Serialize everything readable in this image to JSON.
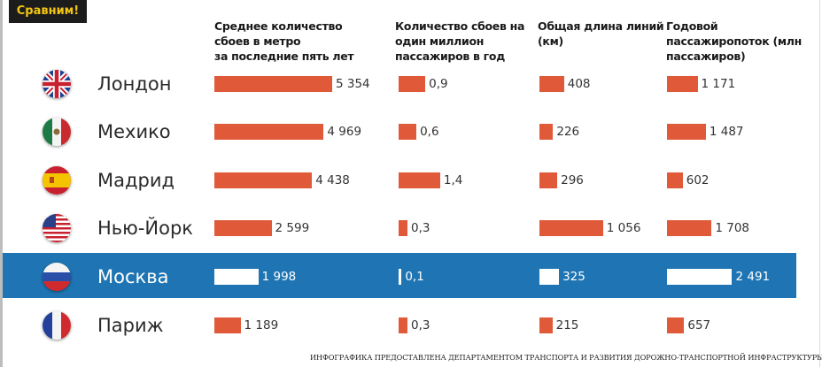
{
  "badge": "Сравним!",
  "colors": {
    "bar": "#e05a3a",
    "highlight_band": "#1f75b3",
    "highlight_bar": "#ffffff",
    "badge_bg": "#1c1c1c",
    "badge_text": "#f2c514"
  },
  "chart_data": {
    "type": "bar",
    "orientation": "horizontal",
    "categories": [
      "Лондон",
      "Мехико",
      "Мадрид",
      "Нью-Йорк",
      "Москва",
      "Париж"
    ],
    "highlighted_category": "Москва",
    "flags": [
      "uk-flag-icon",
      "mexico-flag-icon",
      "spain-flag-icon",
      "usa-flag-icon",
      "russia-flag-icon",
      "france-flag-icon"
    ],
    "series": [
      {
        "name": "Среднее количество\nсбоев в метро\nза последние пять лет",
        "values": [
          5354,
          4969,
          4438,
          2599,
          1998,
          1189
        ],
        "labels": [
          "5 354",
          "4 969",
          "4 438",
          "2 599",
          "1 998",
          "1 189"
        ]
      },
      {
        "name": "Количество сбоев на\nодин миллион\nпассажиров в год",
        "values": [
          0.9,
          0.6,
          1.4,
          0.3,
          0.1,
          0.3
        ],
        "labels": [
          "0,9",
          "0,6",
          "1,4",
          "0,3",
          "0,1",
          "0,3"
        ]
      },
      {
        "name": "Общая длина линий\n(км)",
        "values": [
          408,
          226,
          296,
          1056,
          325,
          215
        ],
        "labels": [
          "408",
          "226",
          "296",
          "1 056",
          "325",
          "215"
        ]
      },
      {
        "name": "Годовой\nпассажиропоток (млн\nпассажиров)",
        "values": [
          1171,
          1487,
          602,
          1708,
          2491,
          657
        ],
        "labels": [
          "1 171",
          "1 487",
          "602",
          "1 708",
          "2 491",
          "657"
        ]
      }
    ]
  },
  "credit": "ИНФОГРАФИКА ПРЕДОСТАВЛЕНА  ДЕПАРТАМЕНТОМ ТРАНСПОРТА И РАЗВИТИЯ ДОРОЖНО-ТРАНСПОРТНОЙ ИНФРАСТРУКТУРЫ МОСКВЫ"
}
